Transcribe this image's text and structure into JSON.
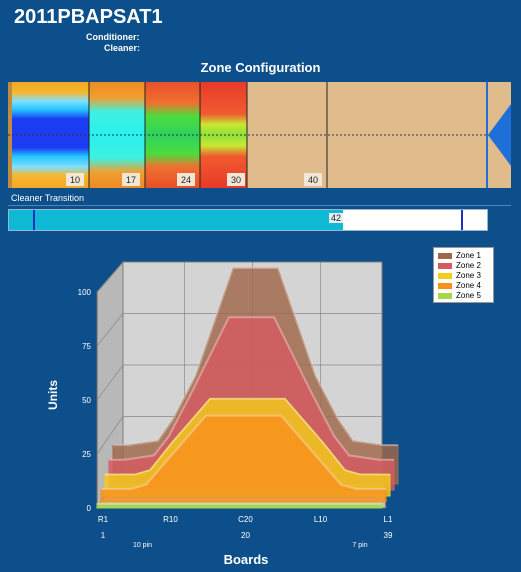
{
  "header": {
    "title": "2011PBAPSAT1",
    "conditioner_label": "Conditioner:",
    "cleaner_label": "Cleaner:"
  },
  "zone_config": {
    "title": "Zone Configuration",
    "markers": [
      "10",
      "17",
      "24",
      "30",
      "40"
    ]
  },
  "cleaner_transition": {
    "label": "Cleaner Transition",
    "value": "42"
  },
  "chart_data": {
    "type": "area",
    "title": "",
    "xlabel": "Boards",
    "ylabel": "Units",
    "ylim": [
      0,
      100
    ],
    "yticks": [
      "0",
      "25",
      "50",
      "75",
      "100"
    ],
    "x_ticks": [
      {
        "board": 1,
        "top": "R1",
        "bottom": "1"
      },
      {
        "board": 10,
        "top": "R10",
        "bottom": ""
      },
      {
        "board": 20,
        "top": "C20",
        "bottom": "20"
      },
      {
        "board": 30,
        "top": "L10",
        "bottom": ""
      },
      {
        "board": 39,
        "top": "L1",
        "bottom": "39"
      }
    ],
    "pin_labels": [
      {
        "board": 6,
        "text": "10 pin"
      },
      {
        "board": 35,
        "text": "7 pin"
      }
    ],
    "legend_position": "top-right",
    "series": [
      {
        "name": "Zone 1",
        "color": "#a0684a",
        "x": [
          1,
          3,
          7,
          9,
          12,
          17,
          20,
          23,
          28,
          31,
          33,
          37,
          39
        ],
        "y": [
          18,
          18,
          20,
          30,
          50,
          100,
          100,
          100,
          50,
          30,
          20,
          18,
          18
        ]
      },
      {
        "name": "Zone 2",
        "color": "#d45b60",
        "x": [
          1,
          3,
          7,
          9,
          12,
          17,
          20,
          23,
          28,
          31,
          33,
          37,
          39
        ],
        "y": [
          14,
          14,
          16,
          25,
          45,
          80,
          80,
          80,
          45,
          25,
          16,
          14,
          14
        ]
      },
      {
        "name": "Zone 3",
        "color": "#f3cc1c",
        "x": [
          1,
          5,
          7,
          10,
          15,
          20,
          25,
          30,
          33,
          35,
          39
        ],
        "y": [
          10,
          10,
          12,
          25,
          45,
          45,
          45,
          25,
          12,
          10,
          10
        ]
      },
      {
        "name": "Zone 4",
        "color": "#f6911b",
        "x": [
          1,
          5,
          7,
          10,
          15,
          20,
          25,
          30,
          33,
          35,
          39
        ],
        "y": [
          6,
          6,
          8,
          20,
          40,
          40,
          40,
          20,
          8,
          6,
          6
        ]
      },
      {
        "name": "Zone 5",
        "color": "#a6d64a",
        "x": [
          1,
          39
        ],
        "y": [
          2,
          2
        ]
      }
    ]
  }
}
